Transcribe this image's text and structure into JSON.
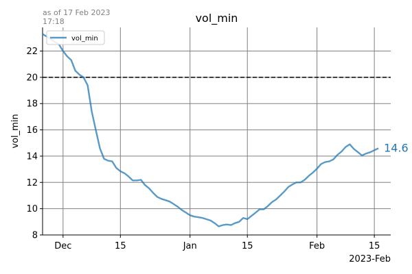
{
  "note": "as of 17 Feb 2023\n17:18",
  "chart_data": {
    "type": "line",
    "title": "vol_min",
    "xlabel": "",
    "ylabel": "vol_min",
    "x_offset_label": "2023-Feb",
    "xlim": [
      "2022-11-26",
      "2023-02-19"
    ],
    "ylim": [
      8,
      23.8
    ],
    "yticks": [
      8,
      10,
      12,
      14,
      16,
      18,
      20,
      22
    ],
    "xticks": [
      {
        "date": "2022-12-01",
        "label": "Dec"
      },
      {
        "date": "2022-12-15",
        "label": "15"
      },
      {
        "date": "2023-01-01",
        "label": "Jan"
      },
      {
        "date": "2023-01-15",
        "label": "15"
      },
      {
        "date": "2023-02-01",
        "label": "Feb"
      },
      {
        "date": "2023-02-15",
        "label": "15"
      }
    ],
    "grid": true,
    "legend": {
      "location": "upper-left",
      "entries": [
        "vol_min"
      ]
    },
    "reference_line": {
      "y": 20,
      "style": "dashed",
      "color": "#000000"
    },
    "last_value_label": "14.6",
    "colors": {
      "series": "#1f77b4",
      "grid": "#808080"
    },
    "series": [
      {
        "name": "vol_min",
        "points": [
          [
            "2022-11-26",
            23.3
          ],
          [
            "2022-11-27",
            23.1
          ],
          [
            "2022-11-28",
            22.9
          ],
          [
            "2022-11-29",
            22.7
          ],
          [
            "2022-11-30",
            22.5
          ],
          [
            "2022-12-01",
            22.0
          ],
          [
            "2022-12-02",
            21.6
          ],
          [
            "2022-12-03",
            21.3
          ],
          [
            "2022-12-04",
            20.5
          ],
          [
            "2022-12-05",
            20.2
          ],
          [
            "2022-12-06",
            20.0
          ],
          [
            "2022-12-07",
            19.4
          ],
          [
            "2022-12-08",
            17.4
          ],
          [
            "2022-12-09",
            16.0
          ],
          [
            "2022-12-10",
            14.6
          ],
          [
            "2022-12-11",
            13.8
          ],
          [
            "2022-12-12",
            13.65
          ],
          [
            "2022-12-13",
            13.6
          ],
          [
            "2022-12-14",
            13.1
          ],
          [
            "2022-12-15",
            12.85
          ],
          [
            "2022-12-16",
            12.7
          ],
          [
            "2022-12-17",
            12.45
          ],
          [
            "2022-12-18",
            12.15
          ],
          [
            "2022-12-19",
            12.15
          ],
          [
            "2022-12-20",
            12.2
          ],
          [
            "2022-12-21",
            11.8
          ],
          [
            "2022-12-22",
            11.55
          ],
          [
            "2022-12-23",
            11.2
          ],
          [
            "2022-12-24",
            10.9
          ],
          [
            "2022-12-25",
            10.75
          ],
          [
            "2022-12-26",
            10.65
          ],
          [
            "2022-12-27",
            10.55
          ],
          [
            "2022-12-28",
            10.35
          ],
          [
            "2022-12-29",
            10.15
          ],
          [
            "2022-12-30",
            9.9
          ],
          [
            "2022-12-31",
            9.7
          ],
          [
            "2023-01-01",
            9.5
          ],
          [
            "2023-01-02",
            9.4
          ],
          [
            "2023-01-03",
            9.35
          ],
          [
            "2023-01-04",
            9.3
          ],
          [
            "2023-01-05",
            9.2
          ],
          [
            "2023-01-06",
            9.1
          ],
          [
            "2023-01-07",
            8.9
          ],
          [
            "2023-01-08",
            8.65
          ],
          [
            "2023-01-09",
            8.75
          ],
          [
            "2023-01-10",
            8.8
          ],
          [
            "2023-01-11",
            8.75
          ],
          [
            "2023-01-12",
            8.9
          ],
          [
            "2023-01-13",
            9.0
          ],
          [
            "2023-01-14",
            9.3
          ],
          [
            "2023-01-15",
            9.2
          ],
          [
            "2023-01-16",
            9.45
          ],
          [
            "2023-01-17",
            9.7
          ],
          [
            "2023-01-18",
            9.95
          ],
          [
            "2023-01-19",
            9.95
          ],
          [
            "2023-01-20",
            10.2
          ],
          [
            "2023-01-21",
            10.5
          ],
          [
            "2023-01-22",
            10.7
          ],
          [
            "2023-01-23",
            11.0
          ],
          [
            "2023-01-24",
            11.3
          ],
          [
            "2023-01-25",
            11.65
          ],
          [
            "2023-01-26",
            11.85
          ],
          [
            "2023-01-27",
            12.0
          ],
          [
            "2023-01-28",
            12.0
          ],
          [
            "2023-01-29",
            12.2
          ],
          [
            "2023-01-30",
            12.5
          ],
          [
            "2023-01-31",
            12.75
          ],
          [
            "2023-02-01",
            13.05
          ],
          [
            "2023-02-02",
            13.4
          ],
          [
            "2023-02-03",
            13.55
          ],
          [
            "2023-02-04",
            13.6
          ],
          [
            "2023-02-05",
            13.75
          ],
          [
            "2023-02-06",
            14.1
          ],
          [
            "2023-02-07",
            14.35
          ],
          [
            "2023-02-08",
            14.7
          ],
          [
            "2023-02-09",
            14.9
          ],
          [
            "2023-02-10",
            14.55
          ],
          [
            "2023-02-11",
            14.3
          ],
          [
            "2023-02-12",
            14.05
          ],
          [
            "2023-02-13",
            14.2
          ],
          [
            "2023-02-14",
            14.3
          ],
          [
            "2023-02-15",
            14.45
          ],
          [
            "2023-02-16",
            14.6
          ]
        ]
      }
    ]
  }
}
